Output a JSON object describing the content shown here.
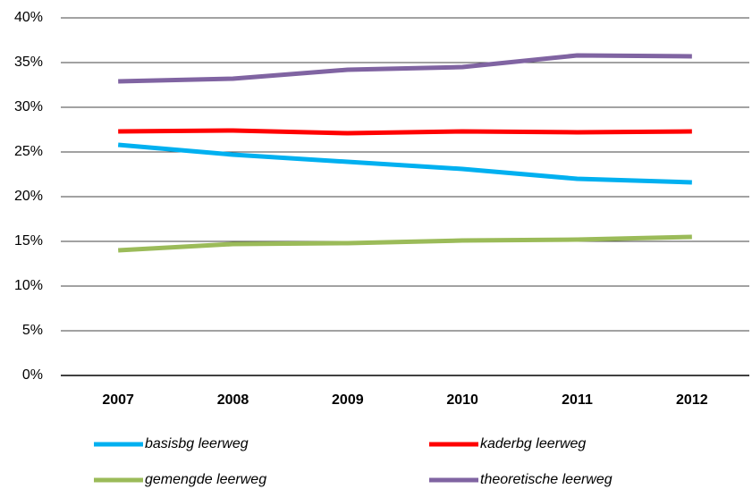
{
  "chart_data": {
    "type": "line",
    "categories": [
      "2007",
      "2008",
      "2009",
      "2010",
      "2011",
      "2012"
    ],
    "series": [
      {
        "name": "basisbg leerweg",
        "color": "#00b0f0",
        "values": [
          25.8,
          24.7,
          23.9,
          23.1,
          22.0,
          21.6
        ]
      },
      {
        "name": "kaderbg leerweg",
        "color": "#ff0000",
        "values": [
          27.3,
          27.4,
          27.1,
          27.3,
          27.2,
          27.3
        ]
      },
      {
        "name": "gemengde leerweg",
        "color": "#9bbb59",
        "values": [
          14.0,
          14.7,
          14.8,
          15.1,
          15.2,
          15.5
        ]
      },
      {
        "name": "theoretische leerweg",
        "color": "#8064a2",
        "values": [
          32.9,
          33.2,
          34.2,
          34.5,
          35.8,
          35.7
        ]
      }
    ],
    "ylim": [
      0,
      40
    ],
    "yticks": [
      {
        "value": 0,
        "label": "0%"
      },
      {
        "value": 5,
        "label": "5%"
      },
      {
        "value": 10,
        "label": "10%"
      },
      {
        "value": 15,
        "label": "15%"
      },
      {
        "value": 20,
        "label": "20%"
      },
      {
        "value": 25,
        "label": "25%"
      },
      {
        "value": 30,
        "label": "30%"
      },
      {
        "value": 35,
        "label": "35%"
      },
      {
        "value": 40,
        "label": "40%"
      }
    ],
    "grid": true,
    "legend": "bottom"
  }
}
